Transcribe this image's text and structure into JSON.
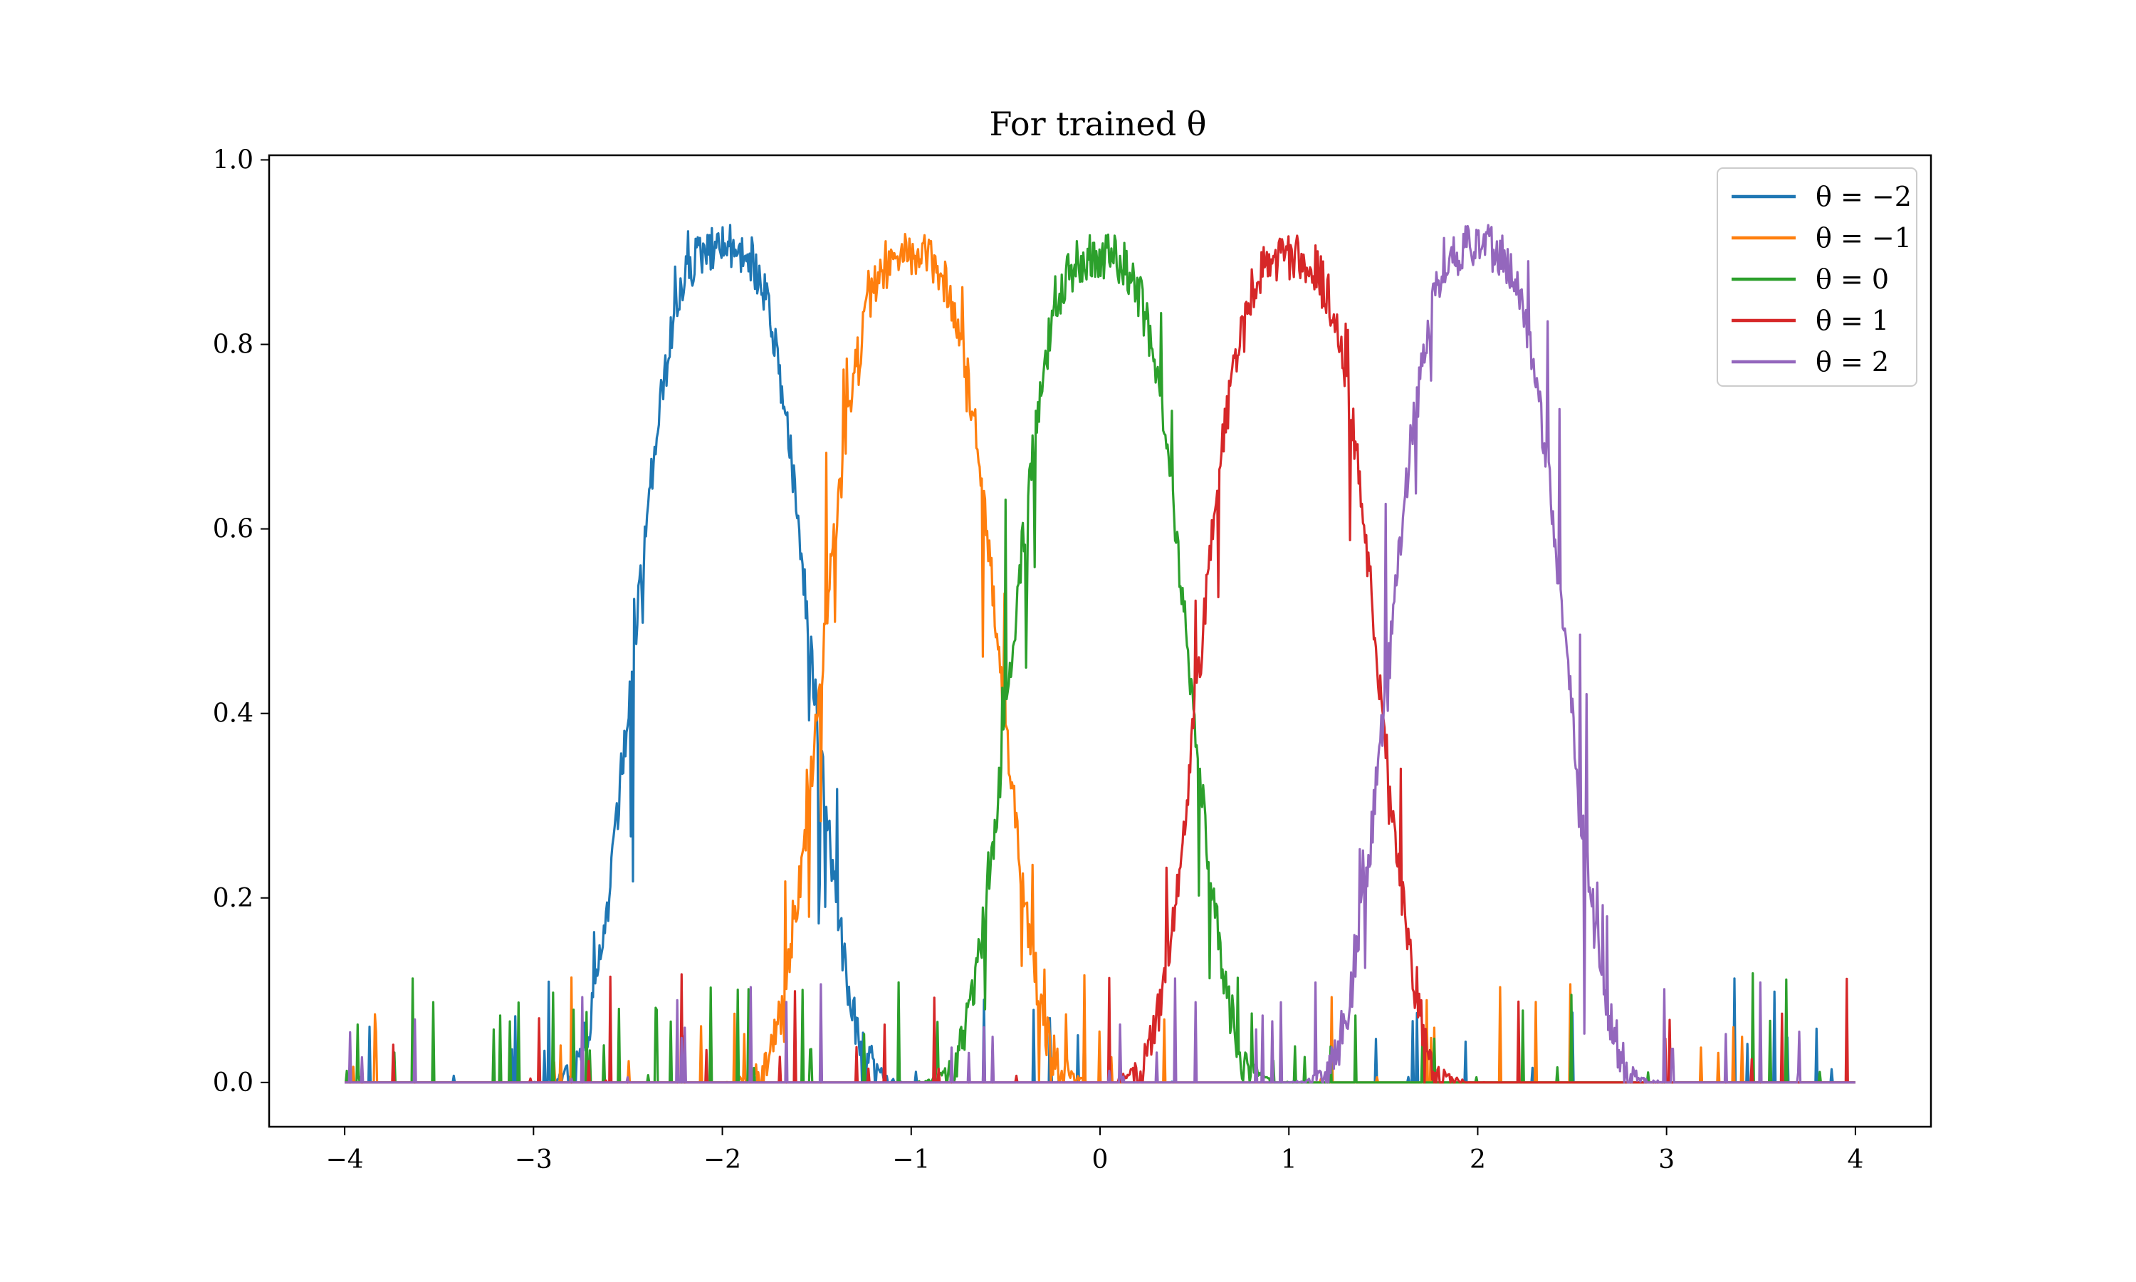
{
  "chart_data": {
    "type": "line",
    "title": "For trained θ",
    "xlabel": "",
    "ylabel": "",
    "xlim": [
      -4.4,
      4.4
    ],
    "ylim": [
      -0.048,
      1.005
    ],
    "x_ticks": [
      -4,
      -3,
      -2,
      -1,
      0,
      1,
      2,
      3,
      4
    ],
    "x_tick_labels": [
      "−4",
      "−3",
      "−2",
      "−1",
      "0",
      "1",
      "2",
      "3",
      "4"
    ],
    "y_ticks": [
      0.0,
      0.2,
      0.4,
      0.6,
      0.8,
      1.0
    ],
    "y_tick_labels": [
      "0.0",
      "0.2",
      "0.4",
      "0.6",
      "0.8",
      "1.0"
    ],
    "grid": false,
    "legend_position": "top-right",
    "x_range": [
      -4,
      4
    ],
    "series": [
      {
        "name": "θ = −2",
        "color": "#1f77b4",
        "center": -2,
        "peak": 0.93,
        "width": 0.42
      },
      {
        "name": "θ = −1",
        "color": "#ff7f0e",
        "center": -1,
        "peak": 0.92,
        "width": 0.42
      },
      {
        "name": "θ = 0",
        "color": "#2ca02c",
        "center": 0,
        "peak": 0.92,
        "width": 0.42
      },
      {
        "name": "θ = 1",
        "color": "#d62728",
        "center": 1,
        "peak": 0.92,
        "width": 0.42
      },
      {
        "name": "θ = 2",
        "color": "#9467bd",
        "center": 2,
        "peak": 0.93,
        "width": 0.42
      }
    ]
  }
}
